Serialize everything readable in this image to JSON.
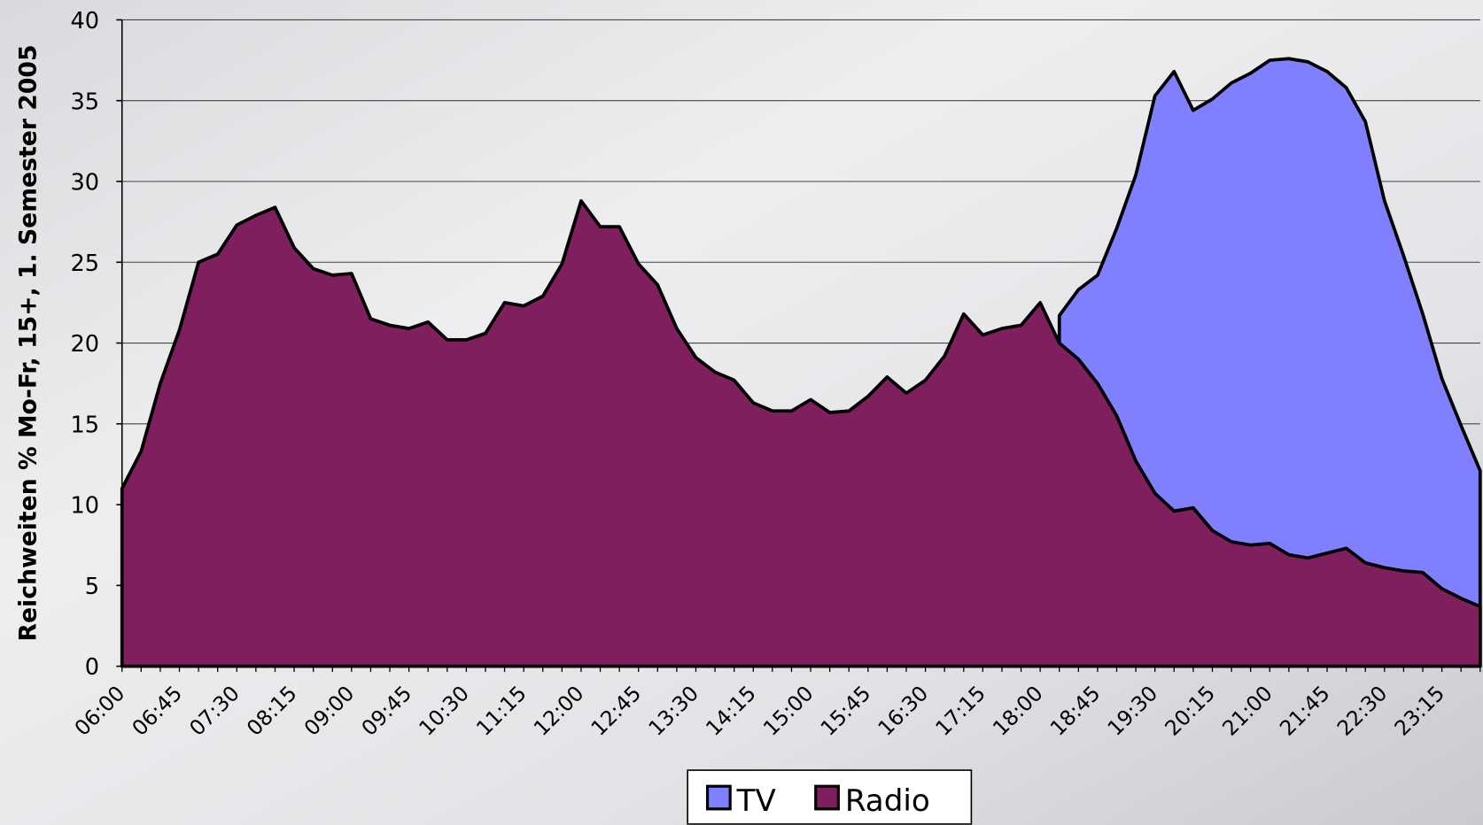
{
  "chart_data": {
    "type": "area",
    "y_label": "Reichweiten % Mo-Fr, 15+, 1. Semester 2005",
    "categories": [
      "06:00",
      null,
      null,
      "06:45",
      null,
      null,
      "07:30",
      null,
      null,
      "08:15",
      null,
      null,
      "09:00",
      null,
      null,
      "09:45",
      null,
      null,
      "10:30",
      null,
      null,
      "11:15",
      null,
      null,
      "12:00",
      null,
      null,
      "12:45",
      null,
      null,
      "13:30",
      null,
      null,
      "14:15",
      null,
      null,
      "15:00",
      null,
      null,
      "15:45",
      null,
      null,
      "16:30",
      null,
      null,
      "17:15",
      null,
      null,
      "18:00",
      null,
      null,
      "18:45",
      null,
      null,
      "19:30",
      null,
      null,
      "20:15",
      null,
      null,
      "21:00",
      null,
      null,
      "21:45",
      null,
      null,
      "22:30",
      null,
      null,
      "23:15",
      null,
      null
    ],
    "series": [
      {
        "name": "TV",
        "color": "#8080ff",
        "values": [
          null,
          null,
          null,
          null,
          null,
          null,
          null,
          null,
          null,
          null,
          null,
          null,
          null,
          null,
          null,
          null,
          null,
          null,
          null,
          null,
          null,
          null,
          null,
          null,
          null,
          null,
          null,
          null,
          null,
          null,
          null,
          null,
          null,
          null,
          null,
          null,
          null,
          null,
          null,
          null,
          null,
          null,
          null,
          null,
          null,
          null,
          null,
          null,
          null,
          21.7,
          23.3,
          24.2,
          27.1,
          30.4,
          35.3,
          36.8,
          34.4,
          35.1,
          36.1,
          36.7,
          37.5,
          37.6,
          37.4,
          36.8,
          35.8,
          33.7,
          28.8,
          25.4,
          21.8,
          17.8,
          14.9,
          12.1
        ]
      },
      {
        "name": "Radio",
        "color": "#801f5e",
        "values": [
          11.0,
          13.3,
          17.5,
          20.8,
          25.0,
          25.5,
          27.3,
          27.9,
          28.4,
          25.9,
          24.6,
          24.2,
          24.3,
          21.5,
          21.1,
          20.9,
          21.3,
          20.2,
          20.2,
          20.6,
          22.5,
          22.3,
          22.9,
          24.9,
          28.8,
          27.2,
          27.2,
          24.9,
          23.6,
          20.9,
          19.1,
          18.2,
          17.7,
          16.3,
          15.8,
          15.8,
          16.5,
          15.7,
          15.8,
          16.7,
          17.9,
          16.9,
          17.7,
          19.2,
          21.8,
          20.5,
          20.9,
          21.1,
          22.5,
          20.0,
          19.0,
          17.5,
          15.5,
          12.7,
          10.7,
          9.6,
          9.8,
          8.4,
          7.7,
          7.5,
          7.6,
          6.9,
          6.7,
          7.0,
          7.3,
          6.4,
          6.1,
          5.9,
          5.8,
          4.8,
          4.2,
          3.7
        ]
      }
    ],
    "ylim": [
      0,
      40
    ],
    "yticks": [
      0,
      5,
      10,
      15,
      20,
      25,
      30,
      35,
      40
    ],
    "grid": true,
    "legend": "bottom"
  }
}
